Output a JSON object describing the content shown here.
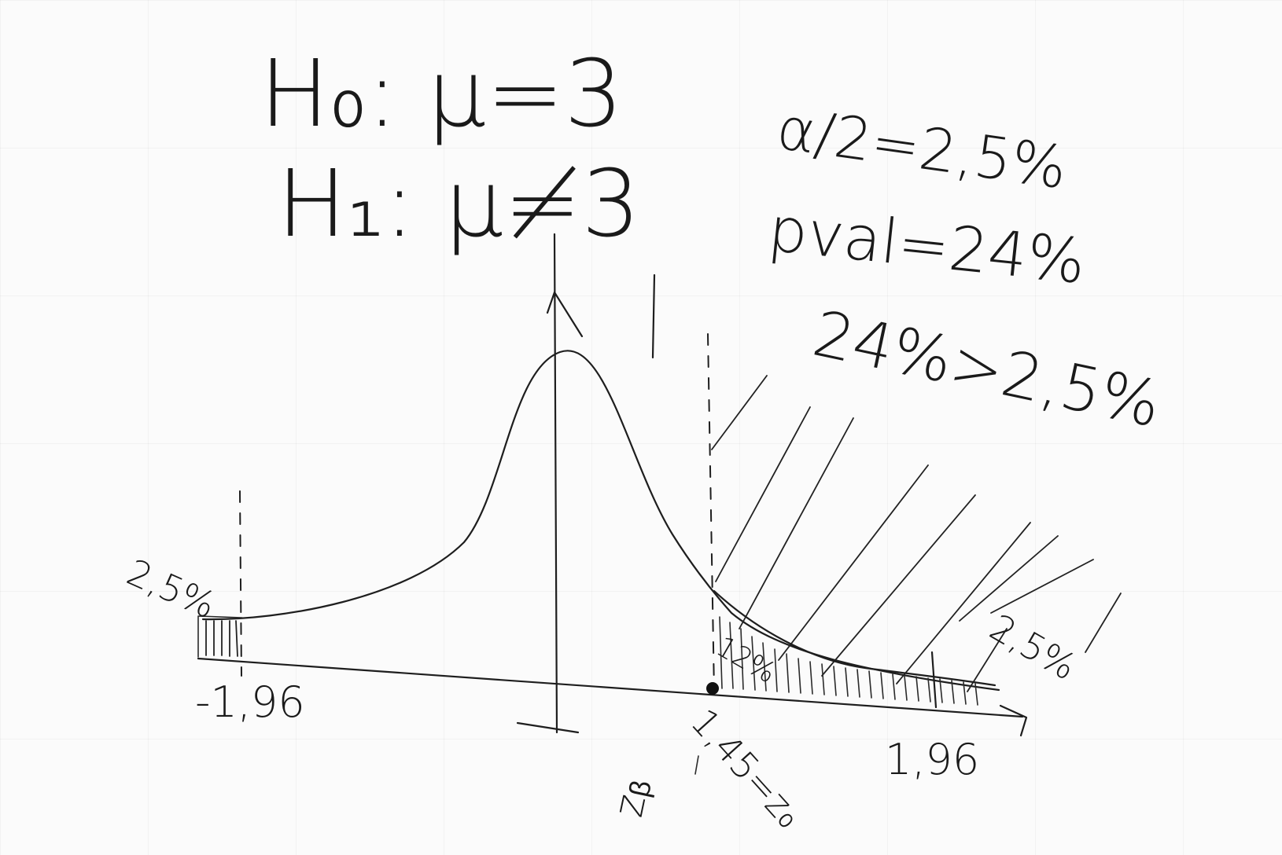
{
  "hypotheses": {
    "h0": "H₀: μ=3",
    "h1": "H₁: μ≠3"
  },
  "notes": {
    "alpha": "α/2=2,5%",
    "pval": "pval=24%",
    "comparison": "24%>2,5%"
  },
  "labels": {
    "left_tail_pct": "2,5%",
    "right_tail_pct": "2,5%",
    "left_critical": "-1,96",
    "right_critical": "1,96",
    "test_stat": "1,45=z₀",
    "test_stat_region": "12%",
    "z_label": "zᵦ"
  }
}
